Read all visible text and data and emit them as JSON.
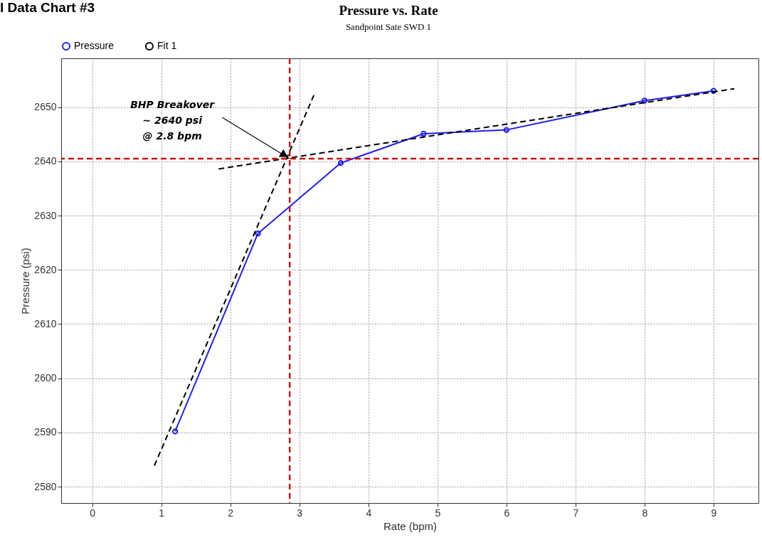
{
  "chart_data": {
    "type": "line",
    "title": "Pressure vs. Rate",
    "subtitle": "Sandpoint Sate SWD 1",
    "xlabel": "Rate (bpm)",
    "ylabel": "Pressure (psi)",
    "xlim": [
      -0.45,
      9.65
    ],
    "ylim": [
      2577,
      2659
    ],
    "xticks": [
      0,
      1,
      2,
      3,
      4,
      5,
      6,
      7,
      8,
      9
    ],
    "yticks": [
      2580,
      2590,
      2600,
      2610,
      2620,
      2630,
      2640,
      2650
    ],
    "series": [
      {
        "name": "Pressure",
        "color": "#1f1fef",
        "marker": "circle",
        "line_style": "solid",
        "x": [
          1.2,
          2.4,
          3.6,
          4.8,
          6.0,
          8.0,
          9.0
        ],
        "values": [
          2590.2,
          2626.7,
          2639.7,
          2645.1,
          2645.8,
          2651.2,
          2653.0
        ]
      },
      {
        "name": "Fit 1",
        "color": "#000000",
        "marker": "none",
        "line_style": "dashed",
        "x": [
          0.9,
          3.21
        ],
        "values": [
          2583.9,
          2652.2
        ]
      },
      {
        "color": "#000000",
        "marker": "none",
        "line_style": "dashed",
        "x": [
          1.83,
          9.3
        ],
        "values": [
          2638.6,
          2653.4
        ]
      }
    ],
    "ref_lines": [
      {
        "axis": "y",
        "value": 2640.5,
        "color": "#d01010",
        "line_style": "dashed"
      },
      {
        "axis": "x",
        "value": 2.86,
        "color": "#d01010",
        "line_style": "dashed"
      }
    ],
    "annotations": [
      "l Data Chart #3",
      {
        "text": "BHP Breakover\n~ 2640 psi\n@ 2.8 bpm",
        "x": 2.86,
        "y": 2640.5
      }
    ],
    "grid": true,
    "legend": "top left"
  }
}
